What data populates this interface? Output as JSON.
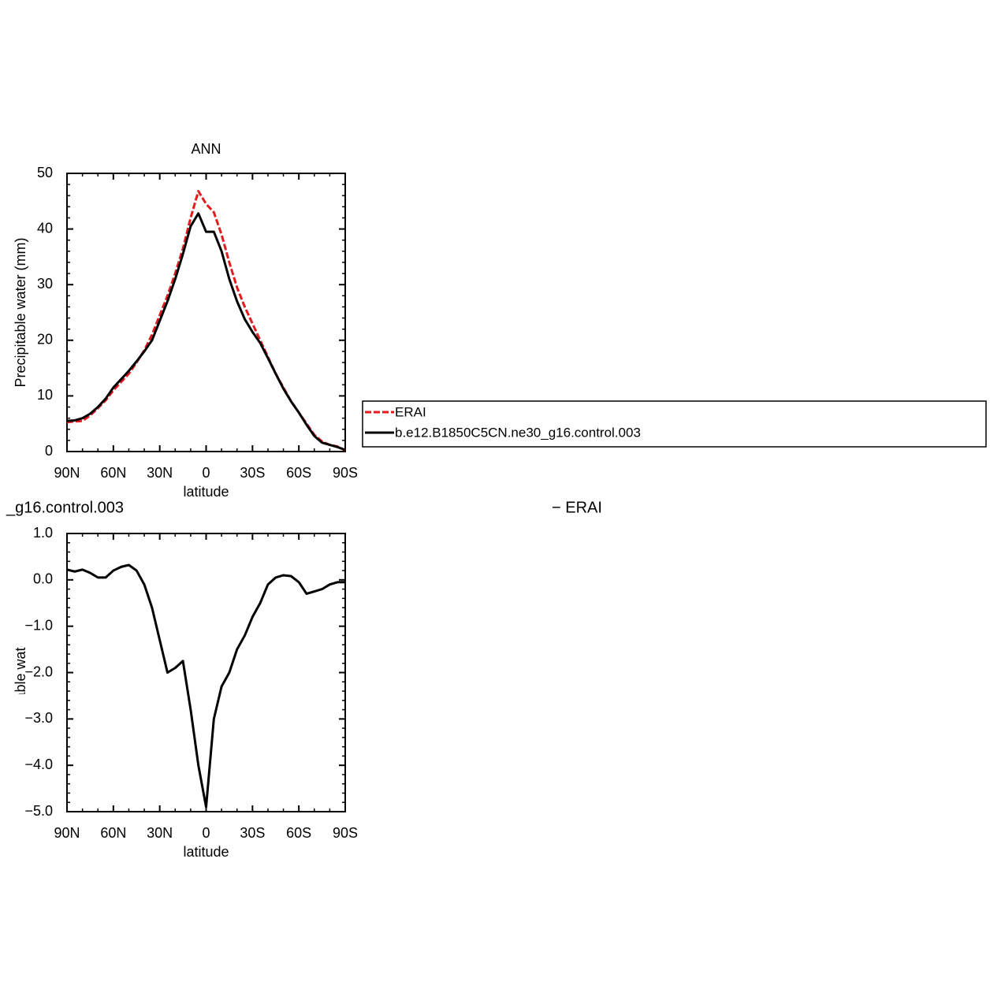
{
  "chart_data": [
    {
      "type": "line",
      "title": "ANN",
      "xlabel": "latitude",
      "ylabel": "Precipitable water (mm)",
      "x": [
        90,
        85,
        80,
        75,
        70,
        65,
        60,
        55,
        50,
        45,
        40,
        35,
        30,
        25,
        20,
        15,
        10,
        5,
        0,
        -5,
        -10,
        -15,
        -20,
        -25,
        -30,
        -35,
        -40,
        -45,
        -50,
        -55,
        -60,
        -65,
        -70,
        -75,
        -80,
        -85,
        -90
      ],
      "series": [
        {
          "name": "ERAI",
          "color": "#e41a1c",
          "style": "dashed",
          "values": [
            5.3,
            5.4,
            5.5,
            6.5,
            7.8,
            9.2,
            11,
            12.5,
            14,
            16,
            18.2,
            21,
            24.5,
            28,
            32,
            36.5,
            42,
            46.8,
            44.5,
            43,
            39,
            34,
            29.5,
            26,
            23,
            20,
            17,
            14,
            11.5,
            9,
            7,
            5,
            3,
            1.8,
            1.2,
            0.9,
            0.2
          ]
        },
        {
          "name": "b.e12.B1850C5CN.ne30_g16.control.003",
          "color": "#000000",
          "style": "solid",
          "values": [
            5.5,
            5.6,
            6,
            6.8,
            8,
            9.5,
            11.5,
            13,
            14.5,
            16.2,
            18,
            20,
            23.5,
            27,
            31,
            35.5,
            40.5,
            42.8,
            39.5,
            39.5,
            36,
            31,
            27,
            23.8,
            21.5,
            19.5,
            16.8,
            14,
            11.3,
            9,
            7,
            4.8,
            2.8,
            1.6,
            1.2,
            0.8,
            0.3
          ]
        }
      ],
      "xlim": [
        90,
        -90
      ],
      "xticks": [
        {
          "value": 90,
          "label": "90N"
        },
        {
          "value": 60,
          "label": "60N"
        },
        {
          "value": 30,
          "label": "30N"
        },
        0,
        {
          "value": -30,
          "label": "30S"
        },
        {
          "value": -60,
          "label": "60S"
        },
        {
          "value": -90,
          "label": "90S"
        }
      ],
      "ylim": [
        0,
        50
      ],
      "yticks": [
        0,
        10,
        20,
        30,
        40,
        50
      ],
      "legend": "right"
    },
    {
      "type": "line",
      "title_left": "_g16.control.003",
      "title_right": "− ERAI",
      "xlabel": "latitude",
      "ylabel": "Precipitable water (mm)",
      "x": [
        90,
        85,
        80,
        75,
        70,
        65,
        60,
        55,
        50,
        45,
        40,
        35,
        30,
        25,
        20,
        15,
        10,
        5,
        0,
        -5,
        -10,
        -15,
        -20,
        -25,
        -30,
        -35,
        -40,
        -45,
        -50,
        -55,
        -60,
        -65,
        -70,
        -75,
        -80,
        -85,
        -90
      ],
      "series": [
        {
          "color": "#000000",
          "style": "solid",
          "values": [
            0.22,
            0.18,
            0.22,
            0.15,
            0.05,
            0.05,
            0.2,
            0.28,
            0.32,
            0.2,
            -0.1,
            -0.6,
            -1.3,
            -2.0,
            -1.9,
            -1.75,
            -2.8,
            -4.0,
            -4.9,
            -3.0,
            -2.3,
            -2.0,
            -1.5,
            -1.2,
            -0.8,
            -0.5,
            -0.1,
            0.05,
            0.1,
            0.08,
            -0.05,
            -0.3,
            -0.25,
            -0.2,
            -0.1,
            -0.05,
            -0.05
          ]
        }
      ],
      "xlim": [
        90,
        -90
      ],
      "xticks": [
        {
          "value": 90,
          "label": "90N"
        },
        {
          "value": 60,
          "label": "60N"
        },
        {
          "value": 30,
          "label": "30N"
        },
        0,
        {
          "value": -30,
          "label": "30S"
        },
        {
          "value": -60,
          "label": "60S"
        },
        {
          "value": -90,
          "label": "90S"
        }
      ],
      "ylim": [
        -5,
        1
      ],
      "yticks": [
        {
          "value": -5,
          "label": "−5.0"
        },
        {
          "value": -4,
          "label": "−4.0"
        },
        {
          "value": -3,
          "label": "−3.0"
        },
        {
          "value": -2,
          "label": "−2.0"
        },
        {
          "value": -1,
          "label": "−1.0"
        },
        {
          "value": 0,
          "label": "0.0"
        },
        {
          "value": 1,
          "label": "1.0"
        }
      ]
    }
  ]
}
